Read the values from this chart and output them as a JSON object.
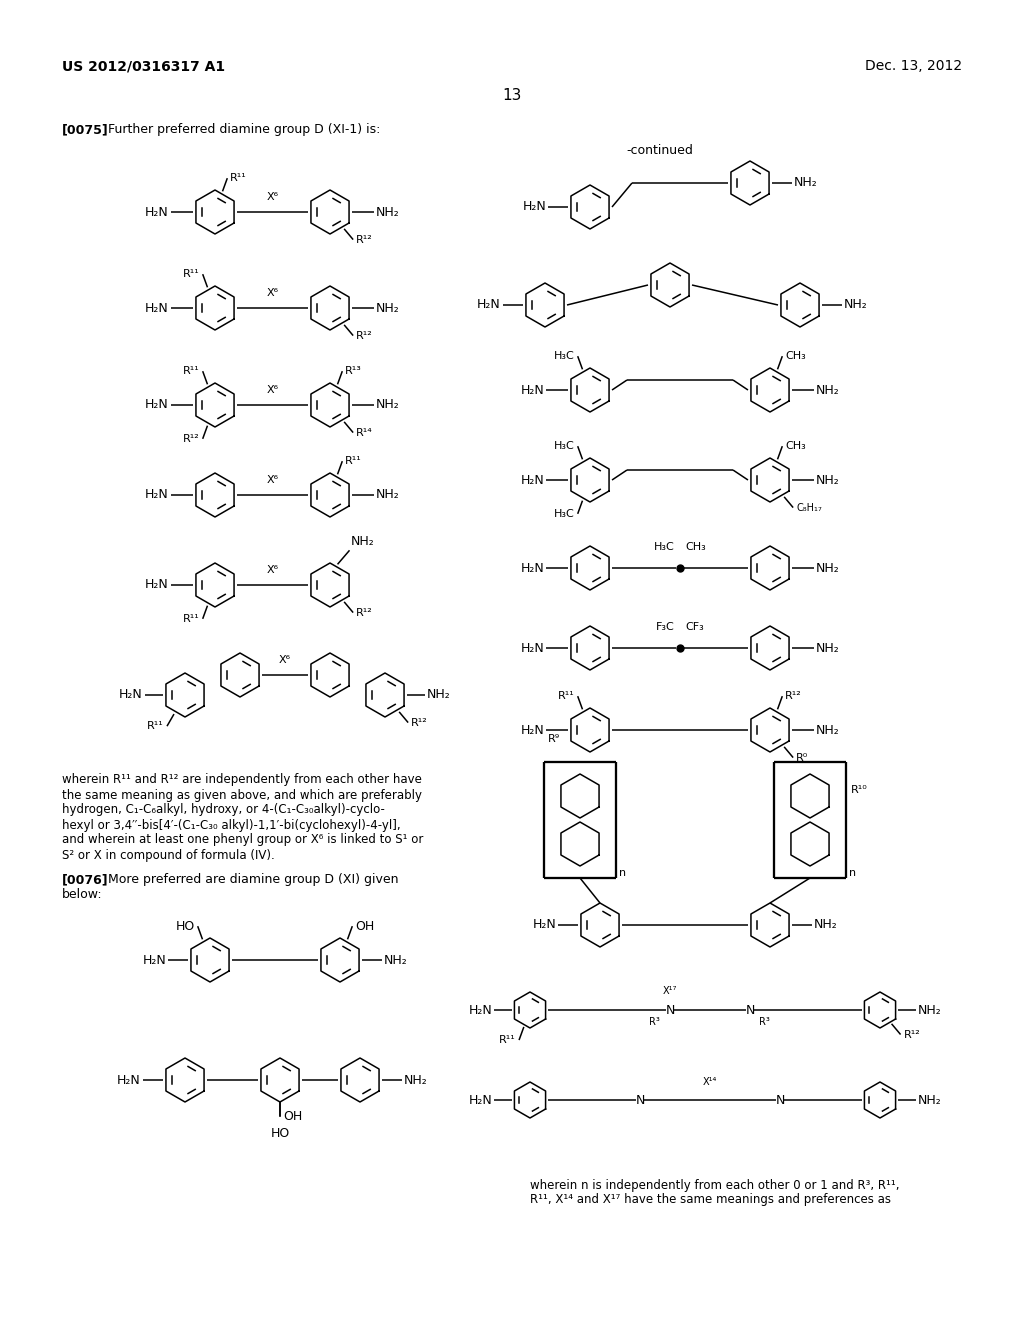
{
  "patent_number": "US 2012/0316317 A1",
  "date": "Dec. 13, 2012",
  "page_number": "13",
  "figsize": [
    10.24,
    13.2
  ],
  "dpi": 100
}
